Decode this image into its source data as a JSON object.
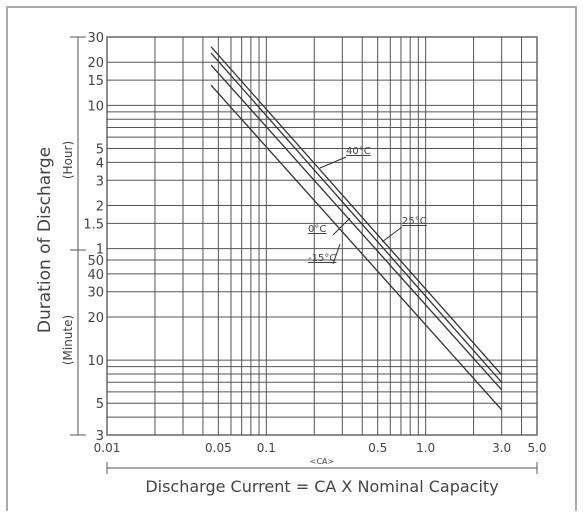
{
  "chart_data": {
    "type": "line",
    "x_label": "<CA>",
    "x_title": "Discharge Current = CA X Nominal Capacity",
    "y_label": "Duration of Discharge",
    "y_upper_label": "(Hour)",
    "y_lower_label": "(Minute)",
    "log_x": true,
    "log_y": true,
    "grid": true,
    "xlim": [
      0.01,
      5
    ],
    "ylim": [
      3,
      1800
    ],
    "xticks": [
      0.01,
      0.05,
      0.1,
      0.5,
      {
        "value": 1,
        "label": "1.0"
      },
      {
        "value": 3,
        "label": "3.0"
      },
      {
        "value": 5,
        "label": "5.0"
      }
    ],
    "xminor": [
      0.02,
      0.03,
      0.04,
      0.06,
      0.07,
      0.08,
      0.09,
      0.2,
      0.3,
      0.4,
      0.6,
      0.7,
      0.8,
      0.9,
      2,
      4
    ],
    "yticks": [
      {
        "value": 1800,
        "label": "30"
      },
      {
        "value": 1200,
        "label": "20"
      },
      {
        "value": 900,
        "label": "15"
      },
      {
        "value": 600,
        "label": "10"
      },
      {
        "value": 300,
        "label": "5"
      },
      {
        "value": 240,
        "label": "4"
      },
      {
        "value": 180,
        "label": "3"
      },
      {
        "value": 120,
        "label": "2"
      },
      {
        "value": 90,
        "label": "1.5"
      },
      {
        "value": 60,
        "label": "1"
      },
      50,
      40,
      30,
      20,
      10,
      5,
      3
    ],
    "yminor": [
      540,
      480,
      420,
      360,
      9,
      8,
      7,
      6,
      4
    ],
    "x": [
      0.045,
      3.0
    ],
    "series": [
      {
        "name": "40°C",
        "color": "#333333",
        "values": [
          1536,
          7.9
        ]
      },
      {
        "name": "25°C",
        "color": "#333333",
        "values": [
          1391,
          7.0
        ]
      },
      {
        "name": "0°C",
        "color": "#333333",
        "values": [
          1147,
          6.2
        ]
      },
      {
        "name": "-15°C",
        "color": "#333333",
        "values": [
          830,
          4.5
        ]
      }
    ]
  }
}
